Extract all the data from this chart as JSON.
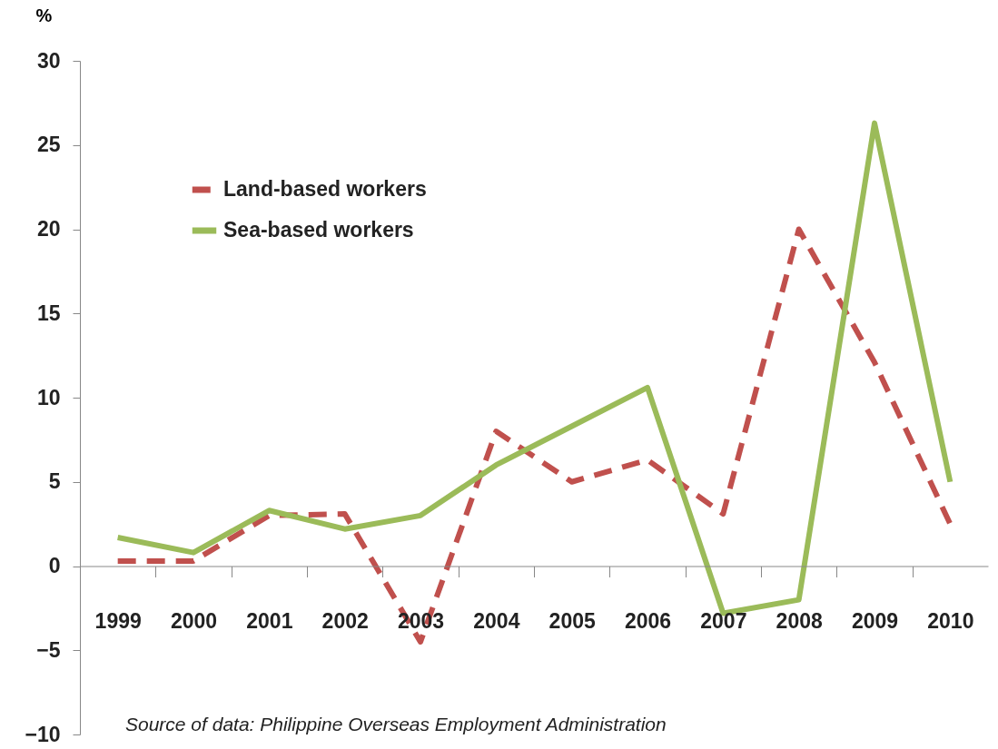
{
  "chart_data": {
    "type": "line",
    "ylabel": "%",
    "categories": [
      "1999",
      "2000",
      "2001",
      "2002",
      "2003",
      "2004",
      "2005",
      "2006",
      "2007",
      "2008",
      "2009",
      "2010"
    ],
    "series": [
      {
        "name": "Land-based workers",
        "color": "#c0504d",
        "line_style": "dashed",
        "values": [
          0.3,
          0.3,
          3,
          3.1,
          -4.5,
          8,
          5,
          6.3,
          3.1,
          20,
          12.1,
          2.5
        ]
      },
      {
        "name": "Sea-based workers",
        "color": "#9bbb59",
        "line_style": "solid",
        "values": [
          1.7,
          0.8,
          3.3,
          2.2,
          3,
          6,
          8.3,
          10.6,
          -2.8,
          -2,
          26.3,
          5
        ]
      }
    ],
    "ylim": [
      -10,
      30
    ],
    "yticks": [
      -10,
      -5,
      0,
      5,
      10,
      15,
      20,
      25,
      30
    ],
    "grid": false,
    "legend": "top left",
    "marker": "none",
    "annotations": [
      "Source of data:  Philippine  Overseas Employment  Administration"
    ]
  }
}
